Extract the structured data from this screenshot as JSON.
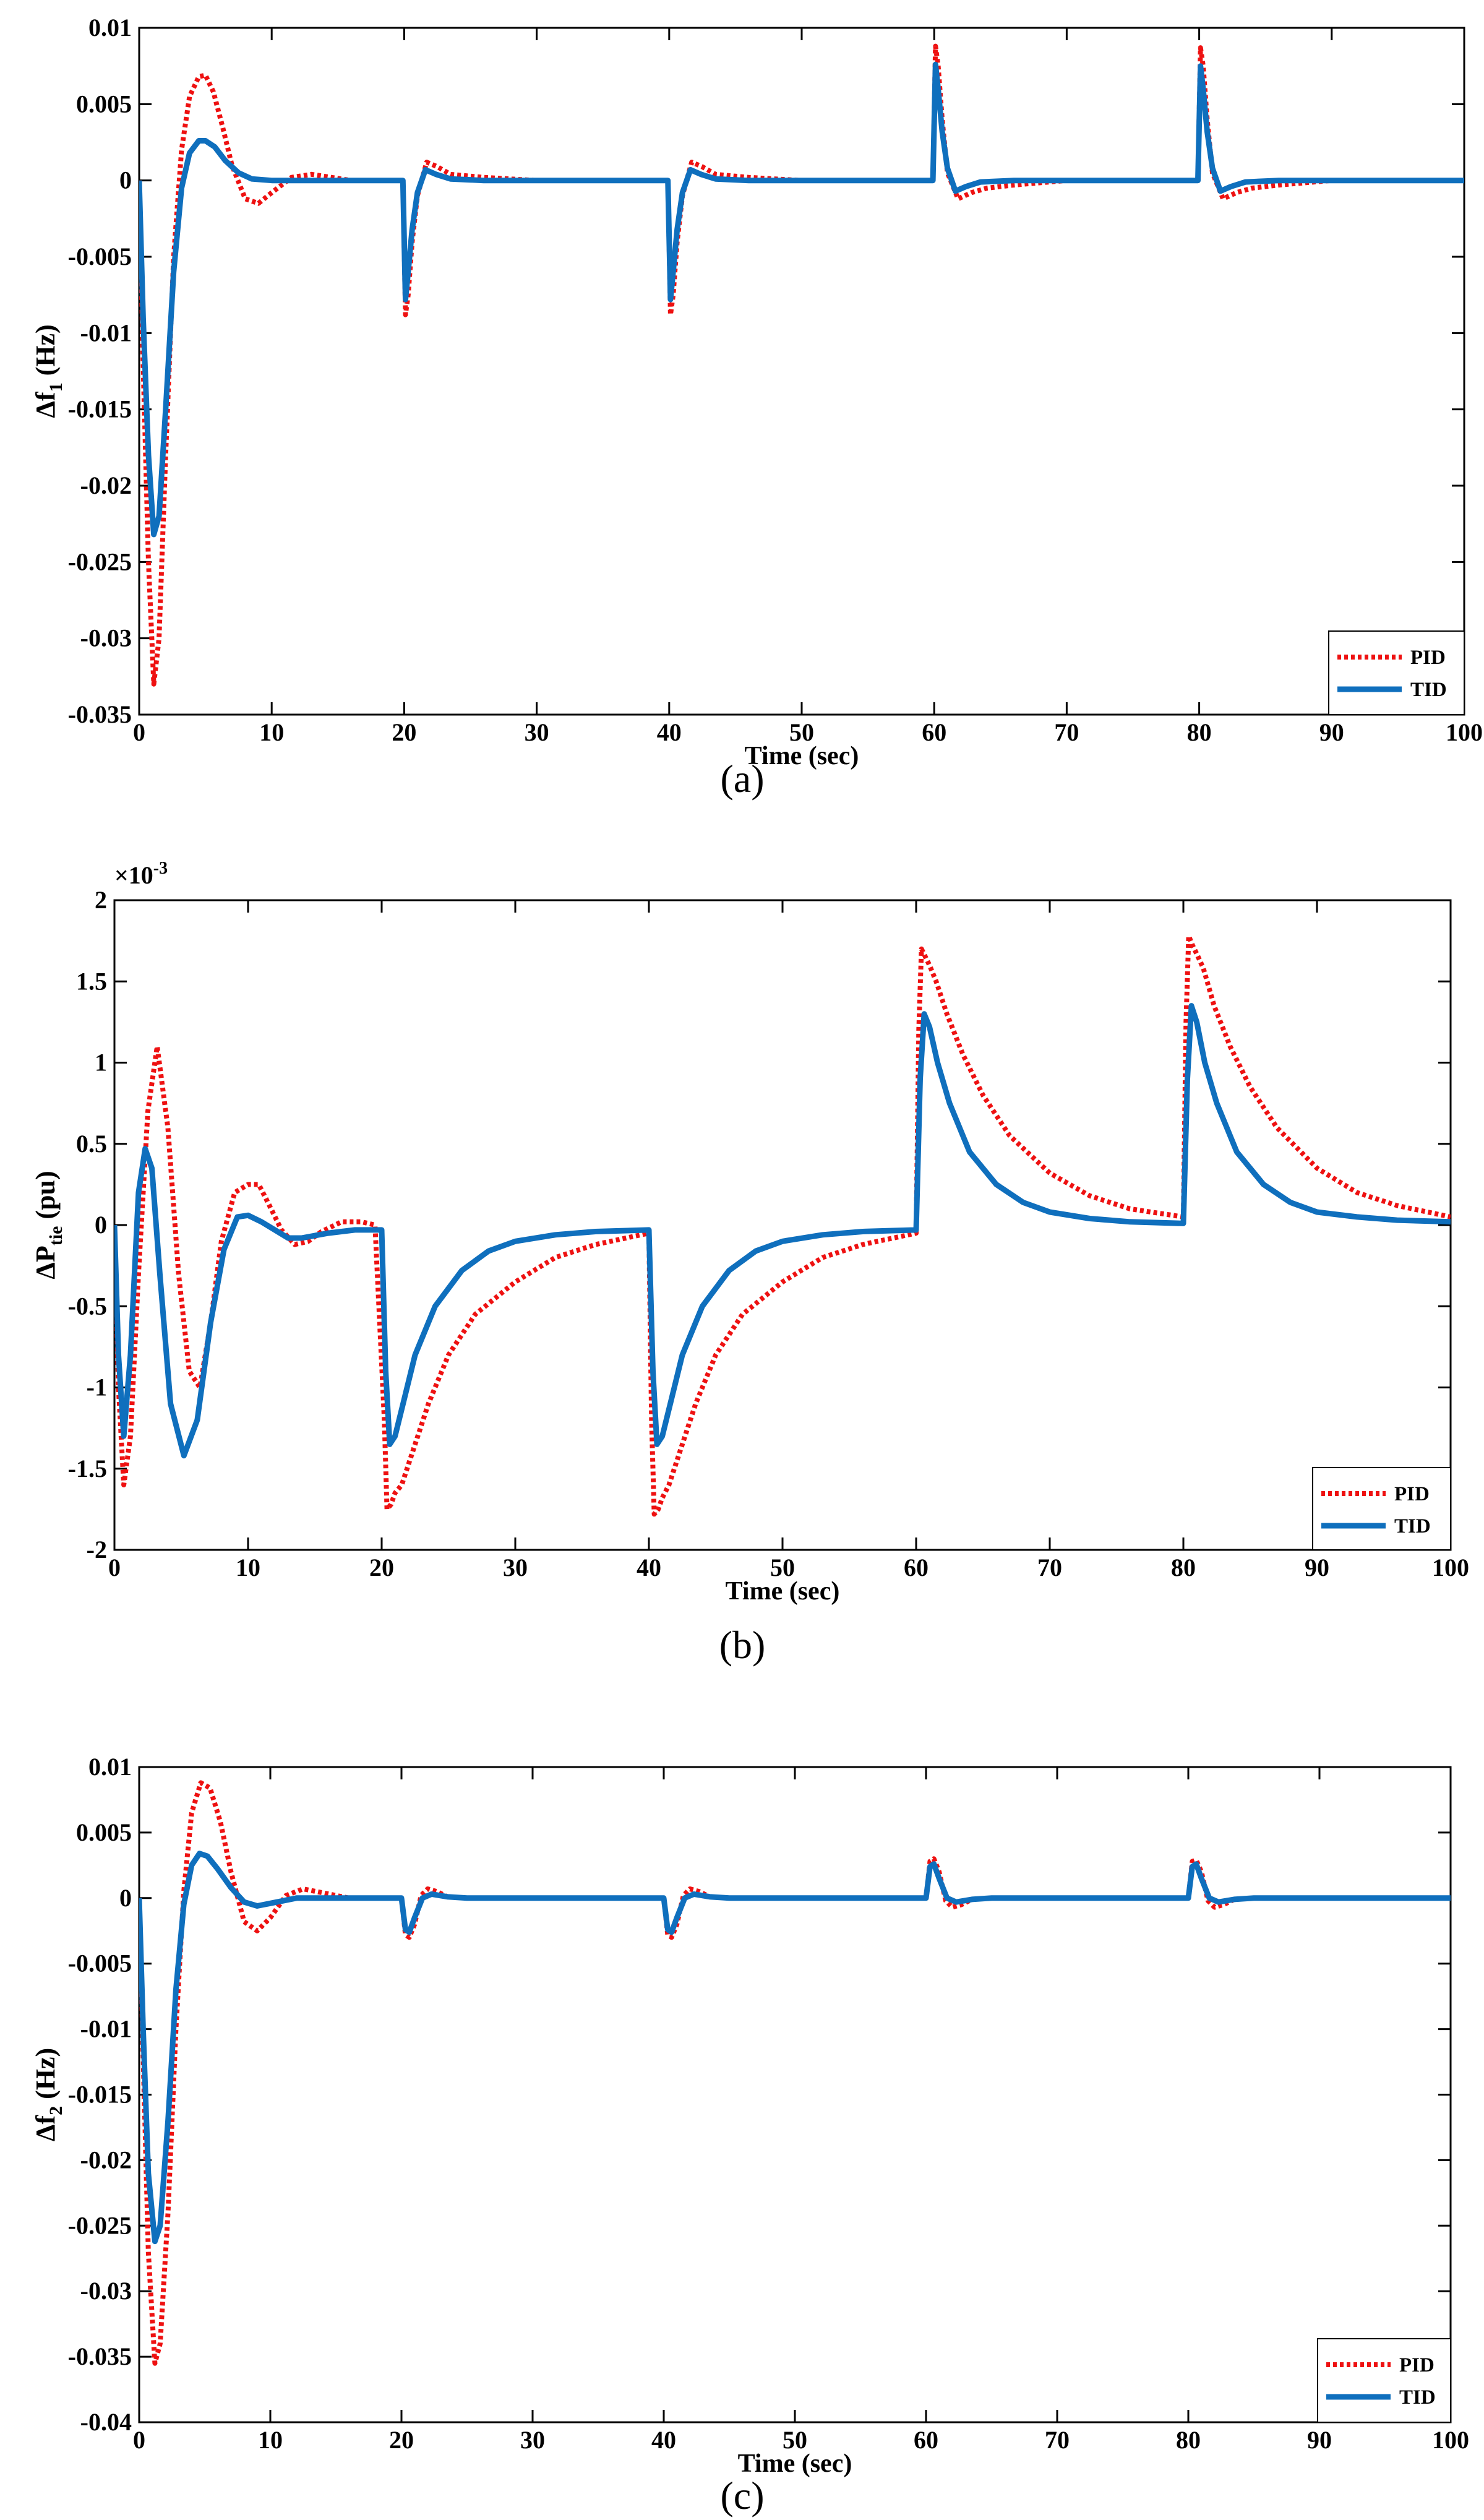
{
  "colors": {
    "pid": "#ee1111",
    "tid": "#0f6fbd",
    "axis": "#000000"
  },
  "chart_data": [
    {
      "id": "a",
      "type": "line",
      "caption": "(a)",
      "xlabel": "Time (sec)",
      "ylabel_main": "Δf",
      "ylabel_sub": "1",
      "ylabel_tail": " (Hz)",
      "exponent_label": "",
      "xlim": [
        0,
        100
      ],
      "ylim": [
        -0.035,
        0.01
      ],
      "xticks": [
        0,
        10,
        20,
        30,
        40,
        50,
        60,
        70,
        80,
        90,
        100
      ],
      "xtick_labels": [
        "0",
        "10",
        "20",
        "30",
        "40",
        "50",
        "60",
        "70",
        "80",
        "90",
        "100"
      ],
      "yticks": [
        -0.035,
        -0.03,
        -0.025,
        -0.02,
        -0.015,
        -0.01,
        -0.005,
        0,
        0.005,
        0.01
      ],
      "ytick_labels": [
        "-0.035",
        "-0.03",
        "-0.025",
        "-0.02",
        "-0.015",
        "-0.01",
        "-0.005",
        "0",
        "0.005",
        "0.01"
      ],
      "legend": [
        "PID",
        "TID"
      ],
      "series": [
        {
          "name": "PID",
          "style": "dotted",
          "x": [
            0,
            0.3,
            0.7,
            1.1,
            1.5,
            2,
            2.6,
            3.2,
            3.8,
            4.5,
            5,
            5.6,
            6.3,
            7,
            8,
            9,
            10,
            11.5,
            13,
            14.5,
            16,
            19.9,
            20.1,
            20.3,
            20.6,
            21,
            21.7,
            22.5,
            23.5,
            26,
            30,
            39.9,
            40.1,
            40.3,
            40.6,
            41,
            41.7,
            42.5,
            43.5,
            46,
            50,
            59.9,
            60.1,
            60.3,
            60.6,
            61,
            61.8,
            62.8,
            64,
            66,
            70,
            79.9,
            80.1,
            80.3,
            80.6,
            81,
            81.8,
            82.8,
            84,
            86,
            90,
            100
          ],
          "y": [
            0,
            -0.012,
            -0.025,
            -0.033,
            -0.03,
            -0.018,
            -0.005,
            0.002,
            0.0055,
            0.0068,
            0.0069,
            0.0058,
            0.0035,
            0.001,
            -0.0012,
            -0.0015,
            -0.0008,
            0.0002,
            0.0004,
            0.0002,
            0,
            0,
            -0.0088,
            -0.0075,
            -0.004,
            -0.001,
            0.0012,
            0.0009,
            0.0004,
            0.0002,
            0,
            0,
            -0.0088,
            -0.0075,
            -0.004,
            -0.001,
            0.0012,
            0.0009,
            0.0004,
            0.0002,
            0,
            0,
            0.0088,
            0.0075,
            0.004,
            0.0005,
            -0.0012,
            -0.0008,
            -0.0005,
            -0.0003,
            0,
            0,
            0.0087,
            0.0075,
            0.004,
            0.0005,
            -0.0012,
            -0.0008,
            -0.0005,
            -0.0003,
            0,
            0
          ]
        },
        {
          "name": "TID",
          "style": "solid",
          "x": [
            0,
            0.3,
            0.7,
            1.1,
            1.5,
            2,
            2.6,
            3.2,
            3.8,
            4.5,
            5,
            5.7,
            6.5,
            7.5,
            8.5,
            10,
            12,
            15,
            19.9,
            20.1,
            20.3,
            20.6,
            21,
            21.6,
            22.4,
            23.5,
            26,
            30,
            39.9,
            40.1,
            40.3,
            40.6,
            41,
            41.6,
            42.4,
            43.5,
            46,
            50,
            59.9,
            60.1,
            60.3,
            60.6,
            61,
            61.6,
            62.4,
            63.5,
            66,
            70,
            79.9,
            80.1,
            80.3,
            80.6,
            81,
            81.6,
            82.4,
            83.5,
            86,
            90,
            100
          ],
          "y": [
            0,
            -0.009,
            -0.018,
            -0.0232,
            -0.022,
            -0.015,
            -0.006,
            -0.0005,
            0.0018,
            0.0026,
            0.0026,
            0.0022,
            0.0013,
            0.0005,
            0.0001,
            0,
            0,
            0,
            0,
            -0.0078,
            -0.006,
            -0.0032,
            -0.0008,
            0.0007,
            0.0004,
            0.0001,
            0,
            0,
            0,
            -0.0078,
            -0.006,
            -0.0032,
            -0.0008,
            0.0007,
            0.0004,
            0.0001,
            0,
            0,
            0,
            0.0076,
            0.006,
            0.0032,
            0.0008,
            -0.0007,
            -0.0004,
            -0.0001,
            0,
            0,
            0,
            0.0075,
            0.006,
            0.0032,
            0.0008,
            -0.0007,
            -0.0004,
            -0.0001,
            0,
            0,
            0
          ]
        }
      ]
    },
    {
      "id": "b",
      "type": "line",
      "caption": "(b)",
      "xlabel": "Time (sec)",
      "ylabel_main": "ΔP",
      "ylabel_sub": "tie",
      "ylabel_tail": " (pu)",
      "exponent_label": "×10",
      "exponent_power": "-3",
      "xlim": [
        0,
        100
      ],
      "ylim": [
        -2,
        2
      ],
      "xticks": [
        0,
        10,
        20,
        30,
        40,
        50,
        60,
        70,
        80,
        90,
        100
      ],
      "xtick_labels": [
        "0",
        "10",
        "20",
        "30",
        "40",
        "50",
        "60",
        "70",
        "80",
        "90",
        "100"
      ],
      "yticks": [
        -2,
        -1.5,
        -1,
        -0.5,
        0,
        0.5,
        1,
        1.5,
        2
      ],
      "ytick_labels": [
        "-2",
        "-1.5",
        "-1",
        "-0.5",
        "0",
        "0.5",
        "1",
        "1.5",
        "2"
      ],
      "legend": [
        "PID",
        "TID"
      ],
      "series": [
        {
          "name": "PID",
          "style": "dotted",
          "x": [
            0,
            0.3,
            0.7,
            1.2,
            1.8,
            2.5,
            3.2,
            4,
            4.8,
            5.6,
            6.4,
            7.2,
            8,
            9,
            10,
            10.8,
            11.6,
            12.5,
            13.5,
            14.5,
            15.5,
            17,
            18.5,
            19.5,
            20.2,
            20.4,
            20.7,
            21,
            21.5,
            22.3,
            23.5,
            25,
            27,
            30,
            33,
            36,
            40,
            40.2,
            40.4,
            40.7,
            41,
            41.5,
            42.3,
            43.5,
            45,
            47,
            50,
            53,
            56,
            60,
            60.2,
            60.4,
            60.7,
            61,
            61.5,
            62.3,
            63.5,
            65,
            67,
            70,
            73,
            76,
            80,
            80.2,
            80.4,
            80.7,
            81,
            81.5,
            82.3,
            83.5,
            85,
            87,
            90,
            93,
            96,
            100
          ],
          "y": [
            0,
            -1,
            -1.6,
            -1.3,
            -0.3,
            0.7,
            1.1,
            0.6,
            -0.3,
            -0.9,
            -1,
            -0.6,
            -0.1,
            0.2,
            0.25,
            0.25,
            0.12,
            -0.03,
            -0.12,
            -0.1,
            -0.04,
            0.02,
            0.02,
            0,
            -1.2,
            -1.75,
            -1.72,
            -1.65,
            -1.6,
            -1.4,
            -1.1,
            -0.8,
            -0.55,
            -0.35,
            -0.2,
            -0.12,
            -0.05,
            -1.2,
            -1.78,
            -1.75,
            -1.68,
            -1.6,
            -1.4,
            -1.1,
            -0.8,
            -0.55,
            -0.35,
            -0.2,
            -0.12,
            -0.05,
            1.2,
            1.7,
            1.65,
            1.6,
            1.5,
            1.3,
            1.05,
            0.8,
            0.55,
            0.32,
            0.18,
            0.1,
            0.05,
            1.25,
            1.78,
            1.72,
            1.67,
            1.58,
            1.35,
            1.1,
            0.85,
            0.6,
            0.35,
            0.2,
            0.12,
            0.05
          ]
        },
        {
          "name": "TID",
          "style": "solid",
          "x": [
            0,
            0.3,
            0.7,
            1.2,
            1.8,
            2.3,
            2.8,
            3.4,
            4.2,
            5.2,
            6.2,
            7.2,
            8.2,
            9.2,
            10,
            11,
            12,
            13,
            14,
            16,
            18,
            20,
            20.3,
            20.6,
            21,
            21.6,
            22.5,
            24,
            26,
            28,
            30,
            33,
            36,
            40,
            40.3,
            40.6,
            41,
            41.6,
            42.5,
            44,
            46,
            48,
            50,
            53,
            56,
            60,
            60.3,
            60.6,
            61,
            61.6,
            62.5,
            64,
            66,
            68,
            70,
            73,
            76,
            80,
            80.3,
            80.6,
            81,
            81.6,
            82.5,
            84,
            86,
            88,
            90,
            93,
            96,
            100
          ],
          "y": [
            0,
            -0.8,
            -1.3,
            -0.8,
            0.2,
            0.47,
            0.35,
            -0.3,
            -1.1,
            -1.42,
            -1.2,
            -0.6,
            -0.15,
            0.05,
            0.06,
            0.02,
            -0.03,
            -0.08,
            -0.08,
            -0.05,
            -0.03,
            -0.03,
            -0.9,
            -1.35,
            -1.3,
            -1.1,
            -0.8,
            -0.5,
            -0.28,
            -0.16,
            -0.1,
            -0.06,
            -0.04,
            -0.03,
            -0.9,
            -1.35,
            -1.3,
            -1.1,
            -0.8,
            -0.5,
            -0.28,
            -0.16,
            -0.1,
            -0.06,
            -0.04,
            -0.03,
            0.9,
            1.3,
            1.22,
            1,
            0.75,
            0.45,
            0.25,
            0.14,
            0.08,
            0.04,
            0.02,
            0.01,
            0.9,
            1.35,
            1.25,
            1,
            0.75,
            0.45,
            0.25,
            0.14,
            0.08,
            0.05,
            0.03,
            0.02
          ]
        }
      ]
    },
    {
      "id": "c",
      "type": "line",
      "caption": "(c)",
      "xlabel": "Time (sec)",
      "ylabel_main": "Δf",
      "ylabel_sub": "2",
      "ylabel_tail": " (Hz)",
      "exponent_label": "",
      "xlim": [
        0,
        100
      ],
      "ylim": [
        -0.04,
        0.01
      ],
      "xticks": [
        0,
        10,
        20,
        30,
        40,
        50,
        60,
        70,
        80,
        90,
        100
      ],
      "xtick_labels": [
        "0",
        "10",
        "20",
        "30",
        "40",
        "50",
        "60",
        "70",
        "80",
        "90",
        "100"
      ],
      "yticks": [
        -0.04,
        -0.035,
        -0.03,
        -0.025,
        -0.02,
        -0.015,
        -0.01,
        -0.005,
        0,
        0.005,
        0.01
      ],
      "ytick_labels": [
        "-0.04",
        "-0.035",
        "-0.03",
        "-0.025",
        "-0.02",
        "-0.015",
        "-0.01",
        "-0.005",
        "0",
        "0.005",
        "0.01"
      ],
      "legend": [
        "PID",
        "TID"
      ],
      "series": [
        {
          "name": "PID",
          "style": "dotted",
          "x": [
            0,
            0.3,
            0.7,
            1.2,
            1.6,
            2.2,
            2.8,
            3.4,
            4,
            4.7,
            5.4,
            6.2,
            7,
            8,
            9,
            10,
            11.2,
            12.5,
            14,
            16,
            18,
            20,
            20.3,
            20.6,
            21,
            21.5,
            22,
            22.7,
            23.5,
            25,
            30,
            40,
            40.3,
            40.6,
            41,
            41.5,
            42,
            42.7,
            43.5,
            45,
            50,
            60,
            60.3,
            60.6,
            61,
            61.5,
            62,
            62.7,
            63.5,
            65,
            70,
            80,
            80.3,
            80.6,
            81,
            81.5,
            82,
            82.7,
            83.5,
            85,
            90,
            100
          ],
          "y": [
            0,
            -0.012,
            -0.027,
            -0.0355,
            -0.034,
            -0.024,
            -0.01,
            0.0005,
            0.0065,
            0.0088,
            0.0084,
            0.0058,
            0.002,
            -0.0018,
            -0.0025,
            -0.0015,
            0.0002,
            0.0007,
            0.0004,
            0,
            0,
            0,
            -0.0028,
            -0.003,
            -0.002,
            0.0002,
            0.0007,
            0.0005,
            0.0001,
            0,
            0,
            0,
            -0.0028,
            -0.003,
            -0.002,
            0.0002,
            0.0007,
            0.0005,
            0.0001,
            0,
            0,
            0,
            0.0028,
            0.003,
            0.002,
            -0.0002,
            -0.0007,
            -0.0005,
            -0.0001,
            0,
            0,
            0,
            0.0028,
            0.0029,
            0.002,
            -0.0002,
            -0.0007,
            -0.0005,
            -0.0001,
            0,
            0,
            0
          ]
        },
        {
          "name": "TID",
          "style": "solid",
          "x": [
            0,
            0.3,
            0.7,
            1.2,
            1.6,
            2.2,
            2.8,
            3.4,
            4,
            4.6,
            5.2,
            6,
            7,
            8,
            9,
            10,
            12,
            15,
            20,
            20.3,
            20.6,
            21,
            21.6,
            22.3,
            23.5,
            25,
            30,
            40,
            40.3,
            40.6,
            41,
            41.6,
            42.3,
            43.5,
            45,
            50,
            60,
            60.3,
            60.6,
            61,
            61.6,
            62.3,
            63.5,
            65,
            70,
            80,
            80.3,
            80.6,
            81,
            81.6,
            82.3,
            83.5,
            85,
            90,
            100
          ],
          "y": [
            0,
            -0.01,
            -0.021,
            -0.0262,
            -0.025,
            -0.017,
            -0.007,
            -0.0005,
            0.0025,
            0.0034,
            0.0032,
            0.0022,
            0.0008,
            -0.0003,
            -0.0006,
            -0.0004,
            0,
            0,
            0,
            -0.0024,
            -0.0026,
            -0.0015,
            0,
            0.0003,
            0.0001,
            0,
            0,
            0,
            -0.0024,
            -0.0026,
            -0.0015,
            0,
            0.0003,
            0.0001,
            0,
            0,
            0,
            0.0024,
            0.0026,
            0.0015,
            0,
            -0.0003,
            -0.0001,
            0,
            0,
            0,
            0.0024,
            0.0026,
            0.0015,
            0,
            -0.0003,
            -0.0001,
            0,
            0,
            0
          ]
        }
      ]
    }
  ]
}
